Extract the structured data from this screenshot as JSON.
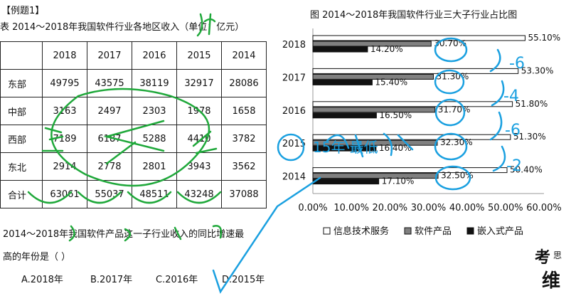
{
  "example_label": "【例题1】",
  "table": {
    "caption": "表  2014～2018年我国软件行业各地区收入（单位：亿元）",
    "header": [
      "",
      "2018",
      "2017",
      "2016",
      "2015",
      "2014"
    ],
    "rows": [
      {
        "label": "东部",
        "values": [
          "49795",
          "43575",
          "38119",
          "32917",
          "28086"
        ]
      },
      {
        "label": "中部",
        "values": [
          "3163",
          "2497",
          "2303",
          "1978",
          "1658"
        ]
      },
      {
        "label": "西部",
        "values": [
          "7189",
          "6187",
          "5288",
          "4410",
          "3782"
        ]
      },
      {
        "label": "东北",
        "values": [
          "2914",
          "2778",
          "2801",
          "3943",
          "3562"
        ]
      },
      {
        "label": "合计",
        "values": [
          "63061",
          "55037",
          "48511",
          "43248",
          "37088"
        ]
      }
    ]
  },
  "question": {
    "line1": "2014～2018年我国软件产品这一子行业收入的同比增速最",
    "line2": "高的年份是（ ）",
    "options": [
      "A.2018年",
      "B.2017年",
      "C.2016年",
      "D.2015年"
    ]
  },
  "chart_data": {
    "type": "bar",
    "orientation": "horizontal",
    "title": "图  2014～2018年我国软件行业三大子行业占比图",
    "categories": [
      "2018",
      "2017",
      "2016",
      "2015",
      "2014"
    ],
    "series": [
      {
        "name": "信息技术服务",
        "values": [
          55.1,
          53.3,
          51.8,
          51.3,
          50.4
        ],
        "labels": [
          "55.10%",
          "53.30%",
          "51.80%",
          "51.30%",
          "50.40%"
        ],
        "color": "#ffffff"
      },
      {
        "name": "软件产品",
        "values": [
          30.7,
          31.3,
          31.7,
          32.3,
          32.5
        ],
        "labels": [
          "30.70%",
          "31.30%",
          "31.70%",
          "32.30%",
          "32.50%"
        ],
        "color": "#808080"
      },
      {
        "name": "嵌入式产品",
        "values": [
          14.2,
          15.4,
          16.5,
          16.4,
          17.1
        ],
        "labels": [
          "14.20%",
          "15.40%",
          "16.50%",
          "16.40%",
          "17.10%"
        ],
        "color": "#111111"
      }
    ],
    "xlim": [
      0,
      60
    ],
    "x_ticks": [
      "0.00%",
      "10.00%",
      "20.00%",
      "30.00%",
      "40.00%",
      "50.00%",
      "60.00%"
    ],
    "grid": false,
    "legend_position": "bottom"
  },
  "annotations": {
    "handwritten": [
      "-6",
      "-4",
      "-6",
      "-2",
      "15年 最低"
    ]
  },
  "logo": {
    "text": "考思维"
  }
}
